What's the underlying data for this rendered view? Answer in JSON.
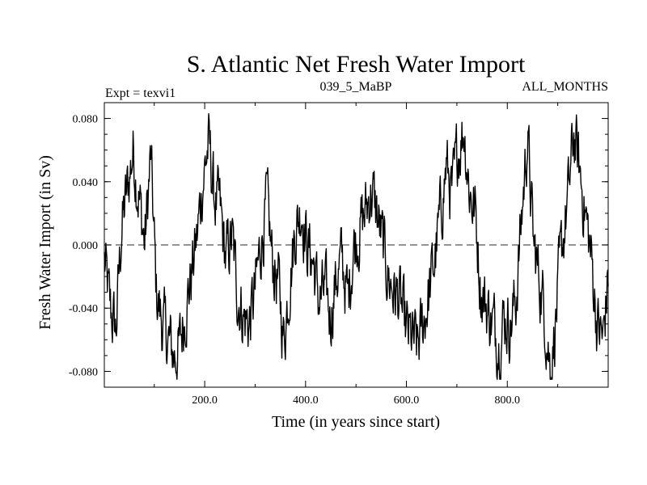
{
  "chart_data": {
    "type": "line",
    "title": "S. Atlantic Net Fresh Water Import",
    "left_label": "Expt = texvi1",
    "center_label": "039_5_MaBP",
    "right_label": "ALL_MONTHS",
    "xlabel": "Time (in years since start)",
    "ylabel": "Fresh Water Import (in Sv)",
    "xlim": [
      1,
      1000
    ],
    "ylim": [
      -0.09,
      0.09
    ],
    "xticks": [
      200,
      400,
      600,
      800
    ],
    "xtick_labels": [
      "200.0",
      "400.0",
      "600.0",
      "800.0"
    ],
    "yticks": [
      0.08,
      0.04,
      0.0,
      -0.04,
      -0.08
    ],
    "ytick_labels": [
      "0.080",
      "0.040",
      "0.000",
      "-0.040",
      "-0.080"
    ],
    "reference_line": {
      "y": 0.0,
      "style": "dashed"
    },
    "series": [
      {
        "name": "S. Atlantic net fresh water import",
        "x": [
          1,
          12,
          24,
          35,
          47,
          58,
          70,
          81,
          93,
          104,
          116,
          127,
          139,
          150,
          162,
          173,
          185,
          196,
          208,
          219,
          231,
          242,
          254,
          265,
          277,
          288,
          300,
          311,
          323,
          334,
          346,
          357,
          369,
          380,
          392,
          403,
          415,
          426,
          438,
          449,
          461,
          472,
          484,
          495,
          507,
          518,
          530,
          541,
          553,
          564,
          576,
          587,
          599,
          610,
          622,
          633,
          645,
          656,
          668,
          679,
          691,
          702,
          714,
          725,
          737,
          748,
          760,
          771,
          783,
          794,
          806,
          817,
          829,
          840,
          852,
          863,
          875,
          886,
          898,
          909,
          921,
          932,
          944,
          955,
          967,
          978,
          990,
          1000
        ],
        "values": [
          -0.01,
          -0.04,
          -0.055,
          0.01,
          0.035,
          0.06,
          0.03,
          0.0,
          0.055,
          -0.03,
          -0.05,
          -0.06,
          -0.07,
          -0.065,
          -0.04,
          -0.02,
          0.005,
          0.04,
          0.065,
          0.03,
          0.02,
          -0.01,
          0.005,
          -0.03,
          -0.045,
          -0.05,
          -0.03,
          0.0,
          0.025,
          -0.01,
          -0.025,
          -0.06,
          -0.02,
          0.01,
          0.025,
          0.0,
          -0.01,
          -0.035,
          -0.03,
          -0.045,
          -0.02,
          -0.01,
          -0.035,
          0.0,
          0.01,
          0.02,
          0.035,
          0.02,
          0.0,
          -0.02,
          -0.03,
          -0.035,
          -0.055,
          -0.06,
          -0.065,
          -0.05,
          -0.03,
          -0.01,
          0.02,
          0.05,
          0.03,
          0.06,
          0.075,
          0.035,
          0.02,
          -0.03,
          -0.04,
          -0.05,
          -0.06,
          -0.045,
          -0.05,
          -0.035,
          0.02,
          0.07,
          0.0,
          -0.02,
          -0.045,
          -0.08,
          -0.04,
          0.0,
          0.03,
          0.07,
          0.045,
          0.02,
          -0.01,
          -0.05,
          -0.06,
          -0.02
        ]
      }
    ]
  }
}
